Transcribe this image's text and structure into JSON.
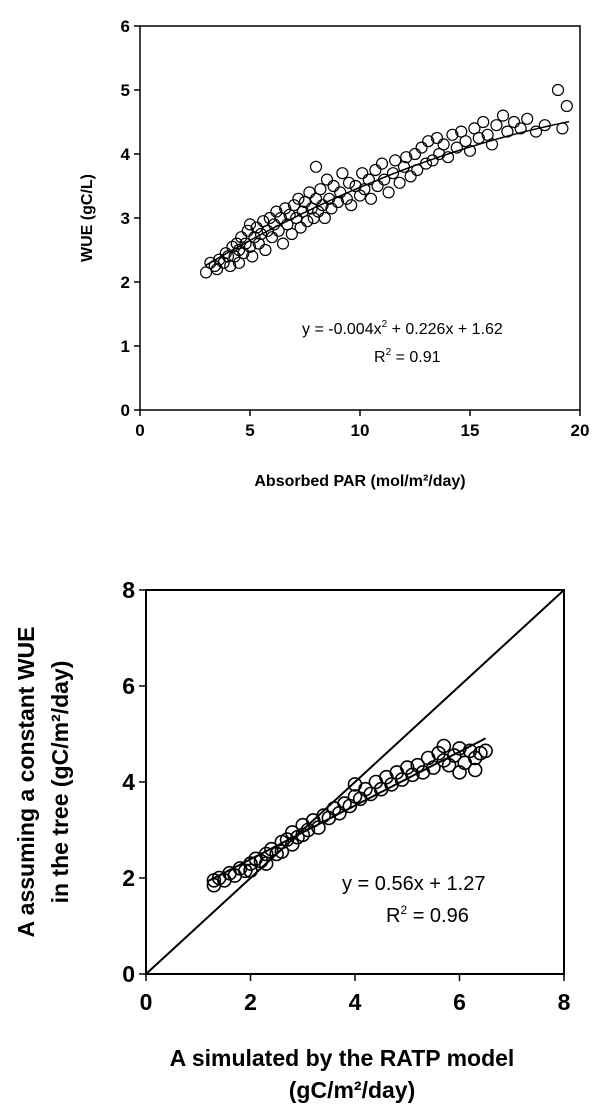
{
  "chart_data": [
    {
      "type": "scatter",
      "xlabel": "Absorbed PAR (mol/m²/day)",
      "ylabel": "WUE (gC/L)",
      "xlim": [
        0,
        20
      ],
      "ylim": [
        0,
        6
      ],
      "xticks": [
        "0",
        "5",
        "10",
        "15",
        "20"
      ],
      "yticks": [
        "0",
        "1",
        "2",
        "3",
        "4",
        "5",
        "6"
      ],
      "grid": false,
      "points": [
        [
          3.0,
          2.15
        ],
        [
          3.2,
          2.3
        ],
        [
          3.4,
          2.25
        ],
        [
          3.5,
          2.2
        ],
        [
          3.6,
          2.35
        ],
        [
          3.8,
          2.3
        ],
        [
          3.9,
          2.45
        ],
        [
          4.0,
          2.4
        ],
        [
          4.1,
          2.25
        ],
        [
          4.2,
          2.55
        ],
        [
          4.3,
          2.4
        ],
        [
          4.4,
          2.6
        ],
        [
          4.5,
          2.5
        ],
        [
          4.5,
          2.3
        ],
        [
          4.6,
          2.7
        ],
        [
          4.7,
          2.45
        ],
        [
          4.8,
          2.6
        ],
        [
          4.9,
          2.8
        ],
        [
          5.0,
          2.55
        ],
        [
          5.0,
          2.9
        ],
        [
          5.1,
          2.4
        ],
        [
          5.2,
          2.7
        ],
        [
          5.3,
          2.85
        ],
        [
          5.4,
          2.6
        ],
        [
          5.5,
          2.75
        ],
        [
          5.6,
          2.95
        ],
        [
          5.7,
          2.5
        ],
        [
          5.8,
          2.8
        ],
        [
          5.9,
          3.0
        ],
        [
          6.0,
          2.7
        ],
        [
          6.1,
          2.9
        ],
        [
          6.2,
          3.1
        ],
        [
          6.3,
          2.8
        ],
        [
          6.4,
          3.0
        ],
        [
          6.5,
          2.6
        ],
        [
          6.6,
          3.15
        ],
        [
          6.7,
          2.9
        ],
        [
          6.8,
          3.05
        ],
        [
          6.9,
          2.75
        ],
        [
          7.0,
          3.2
        ],
        [
          7.1,
          3.0
        ],
        [
          7.2,
          3.3
        ],
        [
          7.3,
          2.85
        ],
        [
          7.4,
          3.1
        ],
        [
          7.5,
          3.25
        ],
        [
          7.6,
          2.95
        ],
        [
          7.7,
          3.4
        ],
        [
          7.8,
          3.15
        ],
        [
          7.9,
          3.0
        ],
        [
          8.0,
          3.8
        ],
        [
          8.0,
          3.3
        ],
        [
          8.1,
          3.1
        ],
        [
          8.2,
          3.45
        ],
        [
          8.3,
          3.2
        ],
        [
          8.4,
          3.0
        ],
        [
          8.5,
          3.6
        ],
        [
          8.6,
          3.3
        ],
        [
          8.7,
          3.15
        ],
        [
          8.8,
          3.5
        ],
        [
          9.0,
          3.25
        ],
        [
          9.1,
          3.4
        ],
        [
          9.2,
          3.7
        ],
        [
          9.4,
          3.3
        ],
        [
          9.5,
          3.55
        ],
        [
          9.6,
          3.2
        ],
        [
          9.8,
          3.5
        ],
        [
          10.0,
          3.35
        ],
        [
          10.1,
          3.7
        ],
        [
          10.2,
          3.45
        ],
        [
          10.4,
          3.6
        ],
        [
          10.5,
          3.3
        ],
        [
          10.7,
          3.75
        ],
        [
          10.8,
          3.5
        ],
        [
          11.0,
          3.85
        ],
        [
          11.1,
          3.6
        ],
        [
          11.3,
          3.4
        ],
        [
          11.5,
          3.7
        ],
        [
          11.6,
          3.9
        ],
        [
          11.8,
          3.55
        ],
        [
          12.0,
          3.8
        ],
        [
          12.1,
          3.95
        ],
        [
          12.3,
          3.65
        ],
        [
          12.5,
          4.0
        ],
        [
          12.6,
          3.75
        ],
        [
          12.8,
          4.1
        ],
        [
          13.0,
          3.85
        ],
        [
          13.1,
          4.2
        ],
        [
          13.3,
          3.9
        ],
        [
          13.5,
          4.25
        ],
        [
          13.6,
          4.0
        ],
        [
          13.8,
          4.15
        ],
        [
          14.0,
          3.95
        ],
        [
          14.2,
          4.3
        ],
        [
          14.4,
          4.1
        ],
        [
          14.6,
          4.35
        ],
        [
          14.8,
          4.2
        ],
        [
          15.0,
          4.05
        ],
        [
          15.2,
          4.4
        ],
        [
          15.4,
          4.25
        ],
        [
          15.6,
          4.5
        ],
        [
          15.8,
          4.3
        ],
        [
          16.0,
          4.15
        ],
        [
          16.2,
          4.45
        ],
        [
          16.5,
          4.6
        ],
        [
          16.7,
          4.35
        ],
        [
          17.0,
          4.5
        ],
        [
          17.3,
          4.4
        ],
        [
          17.6,
          4.55
        ],
        [
          18.0,
          4.35
        ],
        [
          18.4,
          4.45
        ],
        [
          19.0,
          5.0
        ],
        [
          19.2,
          4.4
        ],
        [
          19.4,
          4.75
        ]
      ],
      "fit": {
        "type": "quadratic",
        "a": -0.004,
        "b": 0.226,
        "c": 1.62,
        "x_from": 3,
        "x_to": 19.5
      },
      "annotation": {
        "equation_main": "y = -0.004x",
        "equation_sup": "2",
        "equation_rest": " + 0.226x + 1.62",
        "r2_label": "R",
        "r2_sup": "2",
        "r2_rest": " = 0.91"
      }
    },
    {
      "type": "scatter",
      "xlabel": "A simulated by the RATP model",
      "xlabel2": "(gC/m²/day)",
      "ylabel": "A assuming a constant WUE",
      "ylabel2": "in the tree (gC/m²/day)",
      "xlim": [
        0,
        8
      ],
      "ylim": [
        0,
        8
      ],
      "xticks": [
        "0",
        "2",
        "4",
        "6",
        "8"
      ],
      "yticks": [
        "0",
        "2",
        "4",
        "6",
        "8"
      ],
      "grid": false,
      "points": [
        [
          1.3,
          1.95
        ],
        [
          1.3,
          1.85
        ],
        [
          1.4,
          2.0
        ],
        [
          1.5,
          1.95
        ],
        [
          1.6,
          2.1
        ],
        [
          1.7,
          2.05
        ],
        [
          1.8,
          2.2
        ],
        [
          1.9,
          2.15
        ],
        [
          2.0,
          2.3
        ],
        [
          2.0,
          2.15
        ],
        [
          2.1,
          2.4
        ],
        [
          2.2,
          2.35
        ],
        [
          2.3,
          2.5
        ],
        [
          2.3,
          2.3
        ],
        [
          2.4,
          2.6
        ],
        [
          2.5,
          2.5
        ],
        [
          2.6,
          2.75
        ],
        [
          2.6,
          2.55
        ],
        [
          2.7,
          2.8
        ],
        [
          2.8,
          2.7
        ],
        [
          2.8,
          2.95
        ],
        [
          2.9,
          2.85
        ],
        [
          3.0,
          3.1
        ],
        [
          3.0,
          2.9
        ],
        [
          3.1,
          3.0
        ],
        [
          3.2,
          3.2
        ],
        [
          3.3,
          3.05
        ],
        [
          3.4,
          3.3
        ],
        [
          3.5,
          3.25
        ],
        [
          3.6,
          3.45
        ],
        [
          3.7,
          3.35
        ],
        [
          3.8,
          3.55
        ],
        [
          3.9,
          3.5
        ],
        [
          4.0,
          3.7
        ],
        [
          4.0,
          3.95
        ],
        [
          4.1,
          3.65
        ],
        [
          4.2,
          3.85
        ],
        [
          4.3,
          3.75
        ],
        [
          4.4,
          4.0
        ],
        [
          4.5,
          3.85
        ],
        [
          4.6,
          4.1
        ],
        [
          4.7,
          3.95
        ],
        [
          4.8,
          4.2
        ],
        [
          4.9,
          4.05
        ],
        [
          5.0,
          4.3
        ],
        [
          5.1,
          4.15
        ],
        [
          5.2,
          4.35
        ],
        [
          5.3,
          4.2
        ],
        [
          5.4,
          4.5
        ],
        [
          5.5,
          4.3
        ],
        [
          5.6,
          4.6
        ],
        [
          5.7,
          4.45
        ],
        [
          5.7,
          4.75
        ],
        [
          5.8,
          4.35
        ],
        [
          5.9,
          4.55
        ],
        [
          6.0,
          4.7
        ],
        [
          6.1,
          4.4
        ],
        [
          6.2,
          4.65
        ],
        [
          6.3,
          4.5
        ],
        [
          6.4,
          4.6
        ],
        [
          6.5,
          4.65
        ],
        [
          6.0,
          4.2
        ],
        [
          6.3,
          4.25
        ]
      ],
      "fit": {
        "type": "linear",
        "a": 0,
        "b": 0.56,
        "c": 1.27,
        "x_from": 1.2,
        "x_to": 6.5
      },
      "identity_line": true,
      "annotation": {
        "equation_main": "y = 0.56x + 1.27",
        "equation_sup": "",
        "equation_rest": "",
        "r2_label": "R",
        "r2_sup": "2",
        "r2_rest": " = 0.96"
      }
    }
  ]
}
